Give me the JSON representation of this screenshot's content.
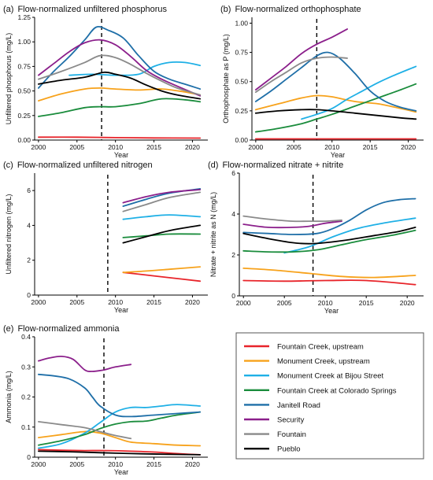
{
  "colors": {
    "Fountain Creek, upstream": "#e8242a",
    "Monument Creek, upstream": "#f7a21b",
    "Monument Creek at Bijou Street": "#1fb0e6",
    "Fountain Creek at Colorado Springs": "#1a8c3c",
    "Janitell Road": "#1f6fa8",
    "Security": "#8b1f8b",
    "Fountain": "#8a8a8a",
    "Pueblo": "#000000"
  },
  "legend": {
    "items": [
      "Fountain Creek, upstream",
      "Monument Creek, upstream",
      "Monument Creek at Bijou Street",
      "Fountain Creek at Colorado Springs",
      "Janitell Road",
      "Security",
      "Fountain",
      "Pueblo"
    ]
  },
  "chart_data": [
    {
      "type": "line",
      "panel": "(a)",
      "title": "Flow-normalized unfiltered phosphorus",
      "xlabel": "Year",
      "ylabel": "Unfiltered phosphorus (mg/L)",
      "xlim": [
        1999.5,
        2022
      ],
      "ylim": [
        0,
        1.25
      ],
      "xticks": [
        2000,
        2005,
        2010,
        2015,
        2020
      ],
      "yticks": [
        0.0,
        0.25,
        0.5,
        0.75,
        1.0,
        1.25
      ],
      "ytick_labels": [
        "0.00",
        "0.25",
        "0.50",
        "0.75",
        "1.00",
        "1.25"
      ],
      "vline": 2008.2,
      "series": [
        {
          "name": "Fountain Creek, upstream",
          "x": [
            2000,
            2005,
            2010,
            2015,
            2021
          ],
          "y": [
            0.03,
            0.03,
            0.025,
            0.022,
            0.02
          ]
        },
        {
          "name": "Monument Creek, upstream",
          "x": [
            2000,
            2003,
            2006,
            2008,
            2010,
            2013,
            2016,
            2019,
            2021
          ],
          "y": [
            0.4,
            0.47,
            0.52,
            0.53,
            0.52,
            0.51,
            0.52,
            0.49,
            0.46
          ]
        },
        {
          "name": "Monument Creek at Bijou Street",
          "x": [
            2004,
            2007,
            2010,
            2013,
            2015,
            2017,
            2019,
            2021
          ],
          "y": [
            0.66,
            0.67,
            0.66,
            0.67,
            0.75,
            0.79,
            0.79,
            0.76
          ]
        },
        {
          "name": "Fountain Creek at Colorado Springs",
          "x": [
            2000,
            2003,
            2006,
            2008,
            2010,
            2013,
            2016,
            2019,
            2021
          ],
          "y": [
            0.24,
            0.28,
            0.33,
            0.34,
            0.34,
            0.37,
            0.42,
            0.41,
            0.39
          ]
        },
        {
          "name": "Janitell Road",
          "x": [
            2000,
            2002,
            2004,
            2006,
            2007.5,
            2009,
            2011,
            2013,
            2015,
            2017,
            2019,
            2021
          ],
          "y": [
            0.53,
            0.7,
            0.85,
            1.02,
            1.15,
            1.12,
            1.04,
            0.86,
            0.7,
            0.62,
            0.57,
            0.52
          ]
        },
        {
          "name": "Security",
          "x": [
            2000,
            2002,
            2004,
            2006,
            2008,
            2010,
            2012,
            2014,
            2016,
            2018,
            2021
          ],
          "y": [
            0.66,
            0.78,
            0.9,
            0.99,
            1.02,
            0.97,
            0.85,
            0.71,
            0.62,
            0.55,
            0.45
          ]
        },
        {
          "name": "Fountain",
          "x": [
            2000,
            2003,
            2006,
            2008,
            2010,
            2012,
            2014,
            2016,
            2018,
            2021
          ],
          "y": [
            0.62,
            0.7,
            0.79,
            0.86,
            0.84,
            0.77,
            0.68,
            0.6,
            0.53,
            0.46
          ]
        },
        {
          "name": "Pueblo",
          "x": [
            2000,
            2003,
            2006,
            2008.5,
            2010,
            2012,
            2014,
            2016,
            2018,
            2021
          ],
          "y": [
            0.57,
            0.61,
            0.64,
            0.69,
            0.67,
            0.63,
            0.56,
            0.5,
            0.46,
            0.42
          ]
        }
      ]
    },
    {
      "type": "line",
      "panel": "(b)",
      "title": "Flow-normalized orthophosphate",
      "xlabel": "Year",
      "ylabel": "Orthophosphate as P (mg/L)",
      "xlim": [
        1999.5,
        2022
      ],
      "ylim": [
        0,
        1.05
      ],
      "xticks": [
        2000,
        2005,
        2010,
        2015,
        2020
      ],
      "yticks": [
        0.0,
        0.25,
        0.5,
        0.75,
        1.0
      ],
      "ytick_labels": [
        "0.00",
        "0.25",
        "0.50",
        "0.75",
        "1.00"
      ],
      "vline": 2008,
      "series": [
        {
          "name": "Fountain Creek, upstream",
          "x": [
            2000,
            2005,
            2010,
            2015,
            2021
          ],
          "y": [
            0.01,
            0.01,
            0.01,
            0.01,
            0.01
          ]
        },
        {
          "name": "Monument Creek, upstream",
          "x": [
            2000,
            2003,
            2006,
            2008,
            2010,
            2013,
            2016,
            2019,
            2021
          ],
          "y": [
            0.26,
            0.31,
            0.36,
            0.38,
            0.37,
            0.33,
            0.31,
            0.27,
            0.24
          ]
        },
        {
          "name": "Monument Creek at Bijou Street",
          "x": [
            2006,
            2008,
            2010,
            2012,
            2014,
            2016,
            2018,
            2021
          ],
          "y": [
            0.18,
            0.22,
            0.27,
            0.35,
            0.42,
            0.49,
            0.55,
            0.63
          ]
        },
        {
          "name": "Fountain Creek at Colorado Springs",
          "x": [
            2000,
            2003,
            2006,
            2008,
            2010,
            2013,
            2016,
            2019,
            2021
          ],
          "y": [
            0.07,
            0.1,
            0.14,
            0.18,
            0.22,
            0.29,
            0.36,
            0.43,
            0.48
          ]
        },
        {
          "name": "Janitell Road",
          "x": [
            2000,
            2002,
            2004,
            2006,
            2008,
            2009.5,
            2011,
            2013,
            2015,
            2017,
            2019,
            2021
          ],
          "y": [
            0.33,
            0.42,
            0.52,
            0.62,
            0.72,
            0.75,
            0.7,
            0.57,
            0.42,
            0.33,
            0.28,
            0.25
          ]
        },
        {
          "name": "Security",
          "x": [
            2000,
            2002,
            2004,
            2006,
            2008,
            2010,
            2012
          ],
          "y": [
            0.43,
            0.53,
            0.63,
            0.74,
            0.82,
            0.88,
            0.95
          ]
        },
        {
          "name": "Fountain",
          "x": [
            2000,
            2002,
            2004,
            2006,
            2008,
            2010,
            2012
          ],
          "y": [
            0.41,
            0.5,
            0.58,
            0.66,
            0.7,
            0.71,
            0.7
          ]
        },
        {
          "name": "Pueblo",
          "x": [
            2000,
            2003,
            2006,
            2008,
            2010,
            2013,
            2016,
            2019,
            2021
          ],
          "y": [
            0.23,
            0.25,
            0.26,
            0.26,
            0.25,
            0.23,
            0.21,
            0.19,
            0.18
          ]
        }
      ]
    },
    {
      "type": "line",
      "panel": "(c)",
      "title": "Flow-normalized unfiltered nitrogen",
      "xlabel": "Year",
      "ylabel": "Unfiltered nitrogen (mg/L)",
      "xlim": [
        1999.5,
        2022
      ],
      "ylim": [
        0,
        7
      ],
      "xticks": [
        2000,
        2005,
        2010,
        2015,
        2020
      ],
      "yticks": [
        0,
        2,
        4,
        6
      ],
      "ytick_labels": [
        "0",
        "2",
        "4",
        "6"
      ],
      "vline": 2009,
      "series": [
        {
          "name": "Fountain Creek, upstream",
          "x": [
            2011,
            2014,
            2017,
            2021
          ],
          "y": [
            1.3,
            1.15,
            1.0,
            0.8
          ]
        },
        {
          "name": "Monument Creek, upstream",
          "x": [
            2011,
            2014,
            2017,
            2021
          ],
          "y": [
            1.3,
            1.38,
            1.48,
            1.62
          ]
        },
        {
          "name": "Monument Creek at Bijou Street",
          "x": [
            2011,
            2014,
            2017,
            2021
          ],
          "y": [
            4.35,
            4.5,
            4.6,
            4.5
          ]
        },
        {
          "name": "Fountain Creek at Colorado Springs",
          "x": [
            2011,
            2014,
            2017,
            2021
          ],
          "y": [
            3.3,
            3.4,
            3.5,
            3.5
          ]
        },
        {
          "name": "Janitell Road",
          "x": [
            2011,
            2014,
            2017,
            2021
          ],
          "y": [
            5.1,
            5.5,
            5.85,
            6.1
          ]
        },
        {
          "name": "Security",
          "x": [
            2011,
            2014,
            2017,
            2021
          ],
          "y": [
            5.3,
            5.65,
            5.9,
            6.05
          ]
        },
        {
          "name": "Fountain",
          "x": [
            2011,
            2014,
            2017,
            2021
          ],
          "y": [
            4.8,
            5.2,
            5.6,
            5.9
          ]
        },
        {
          "name": "Pueblo",
          "x": [
            2011,
            2014,
            2017,
            2021
          ],
          "y": [
            3.0,
            3.35,
            3.7,
            4.0
          ]
        }
      ]
    },
    {
      "type": "line",
      "panel": "(d)",
      "title": "Flow-normalized nitrate + nitrite",
      "xlabel": "Year",
      "ylabel": "Nitrate + nitrite as N (mg/L)",
      "xlim": [
        1999.5,
        2022
      ],
      "ylim": [
        0,
        6
      ],
      "xticks": [
        2000,
        2005,
        2010,
        2015,
        2020
      ],
      "yticks": [
        0,
        2,
        4,
        6
      ],
      "ytick_labels": [
        "0",
        "2",
        "4",
        "6"
      ],
      "vline": 2008.5,
      "series": [
        {
          "name": "Fountain Creek, upstream",
          "x": [
            2000,
            2005,
            2010,
            2015,
            2021
          ],
          "y": [
            0.75,
            0.72,
            0.75,
            0.75,
            0.55
          ]
        },
        {
          "name": "Monument Creek, upstream",
          "x": [
            2000,
            2004,
            2008,
            2012,
            2016,
            2021
          ],
          "y": [
            1.35,
            1.25,
            1.1,
            0.95,
            0.9,
            1.0
          ]
        },
        {
          "name": "Monument Creek at Bijou Street",
          "x": [
            2005,
            2008,
            2011,
            2014,
            2017,
            2021
          ],
          "y": [
            2.1,
            2.4,
            2.9,
            3.3,
            3.55,
            3.8
          ]
        },
        {
          "name": "Fountain Creek at Colorado Springs",
          "x": [
            2000,
            2003,
            2006,
            2009,
            2012,
            2015,
            2018,
            2021
          ],
          "y": [
            2.2,
            2.15,
            2.15,
            2.25,
            2.5,
            2.75,
            2.95,
            3.2
          ]
        },
        {
          "name": "Janitell Road",
          "x": [
            2000,
            2003,
            2006,
            2009,
            2011,
            2013,
            2015,
            2017,
            2019,
            2021
          ],
          "y": [
            3.1,
            3.05,
            3.0,
            3.05,
            3.3,
            3.7,
            4.2,
            4.55,
            4.7,
            4.75
          ]
        },
        {
          "name": "Security",
          "x": [
            2000,
            2003,
            2006,
            2008,
            2010,
            2012
          ],
          "y": [
            3.5,
            3.35,
            3.35,
            3.4,
            3.55,
            3.65
          ]
        },
        {
          "name": "Fountain",
          "x": [
            2000,
            2003,
            2006,
            2008,
            2010,
            2012
          ],
          "y": [
            3.9,
            3.75,
            3.65,
            3.65,
            3.65,
            3.7
          ]
        },
        {
          "name": "Pueblo",
          "x": [
            2000,
            2003,
            2006,
            2008,
            2010,
            2013,
            2016,
            2019,
            2021
          ],
          "y": [
            3.05,
            2.8,
            2.6,
            2.55,
            2.6,
            2.75,
            2.95,
            3.15,
            3.35
          ]
        }
      ]
    },
    {
      "type": "line",
      "panel": "(e)",
      "title": "Flow-normalized ammonia",
      "xlabel": "Year",
      "ylabel": "Ammonia (mg/L)",
      "xlim": [
        1999.5,
        2022
      ],
      "ylim": [
        0,
        0.4
      ],
      "xticks": [
        2000,
        2005,
        2010,
        2015,
        2020
      ],
      "yticks": [
        0,
        0.1,
        0.2,
        0.3,
        0.4
      ],
      "ytick_labels": [
        "0",
        "0.1",
        "0.2",
        "0.3",
        "0.4"
      ],
      "vline": 2008.5,
      "series": [
        {
          "name": "Fountain Creek, upstream",
          "x": [
            2000,
            2003,
            2006,
            2009,
            2012,
            2015,
            2018,
            2021
          ],
          "y": [
            0.025,
            0.023,
            0.022,
            0.022,
            0.02,
            0.017,
            0.012,
            0.008
          ]
        },
        {
          "name": "Monument Creek, upstream",
          "x": [
            2000,
            2003,
            2006,
            2008,
            2010,
            2012,
            2015,
            2018,
            2021
          ],
          "y": [
            0.065,
            0.075,
            0.085,
            0.08,
            0.065,
            0.05,
            0.045,
            0.04,
            0.038
          ]
        },
        {
          "name": "Monument Creek at Bijou Street",
          "x": [
            2000,
            2003,
            2006,
            2008,
            2010,
            2012,
            2014,
            2016,
            2018,
            2021
          ],
          "y": [
            0.03,
            0.045,
            0.08,
            0.115,
            0.15,
            0.165,
            0.165,
            0.17,
            0.175,
            0.17
          ]
        },
        {
          "name": "Fountain Creek at Colorado Springs",
          "x": [
            2000,
            2003,
            2006,
            2008,
            2010,
            2012,
            2014,
            2016,
            2018,
            2021
          ],
          "y": [
            0.04,
            0.055,
            0.075,
            0.095,
            0.11,
            0.118,
            0.12,
            0.13,
            0.14,
            0.15
          ]
        },
        {
          "name": "Janitell Road",
          "x": [
            2000,
            2002,
            2004,
            2006,
            2007,
            2008,
            2010,
            2012,
            2015,
            2018,
            2021
          ],
          "y": [
            0.275,
            0.27,
            0.26,
            0.23,
            0.2,
            0.17,
            0.14,
            0.135,
            0.14,
            0.145,
            0.15
          ]
        },
        {
          "name": "Security",
          "x": [
            2000,
            2001.5,
            2003,
            2004.5,
            2006,
            2007,
            2008.5,
            2010,
            2012
          ],
          "y": [
            0.32,
            0.33,
            0.335,
            0.325,
            0.29,
            0.285,
            0.29,
            0.3,
            0.308
          ]
        },
        {
          "name": "Fountain",
          "x": [
            2000,
            2003,
            2006,
            2008,
            2010,
            2012
          ],
          "y": [
            0.118,
            0.108,
            0.098,
            0.085,
            0.072,
            0.062
          ]
        },
        {
          "name": "Pueblo",
          "x": [
            2000,
            2004,
            2008,
            2012,
            2016,
            2021
          ],
          "y": [
            0.02,
            0.018,
            0.015,
            0.012,
            0.01,
            0.008
          ]
        }
      ]
    }
  ]
}
